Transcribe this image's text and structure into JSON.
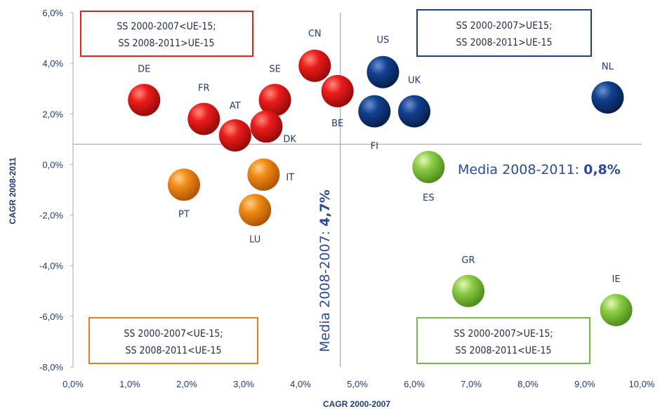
{
  "chart_data": {
    "type": "scatter",
    "title": "",
    "xlabel": "CAGR 2000-2007",
    "ylabel": "CAGR 2008-2011",
    "xlim": [
      0,
      10
    ],
    "ylim": [
      -8,
      6
    ],
    "xticks": [
      "0,0%",
      "1,0%",
      "2,0%",
      "3,0%",
      "4,0%",
      "5,0%",
      "6,0%",
      "7,0%",
      "8,0%",
      "9,0%",
      "10,0%"
    ],
    "yticks": [
      "6,0%",
      "4,0%",
      "2,0%",
      "0,0%",
      "-2,0%",
      "-4,0%",
      "-6,0%",
      "-8,0%"
    ],
    "grid": false,
    "reference_lines": {
      "x": 4.7,
      "y": 0.8,
      "x_label": "Media 2008-2007: ",
      "x_value": "4,7%",
      "y_label": "Media 2008-2011: ",
      "y_value": "0,8%"
    },
    "colors": {
      "red": "#e0141b",
      "blue": "#0d3a8a",
      "orange": "#ee7d10",
      "green": "#79c23a",
      "axis_text": "#1f3c78"
    },
    "quadrant_labels": [
      {
        "id": "top-left",
        "line1": "SS 2000-2007<UE-15;",
        "line2": "SS 2008-2011>UE-15",
        "color": "#d9261c"
      },
      {
        "id": "top-right",
        "line1": "SS 2000-2007>UE15;",
        "line2": "SS 2008-2011>UE-15",
        "color": "#1b3f8b"
      },
      {
        "id": "bottom-left",
        "line1": "SS 2000-2007<UE-15;",
        "line2": "SS 2008-2011<UE-15",
        "color": "#ea7b1c"
      },
      {
        "id": "bottom-right",
        "line1": "SS 2000-2007>UE-15;",
        "line2": "SS 2008-2011<UE-15",
        "color": "#7ab648"
      }
    ],
    "points": [
      {
        "label": "DE",
        "x": 1.25,
        "y": 2.55,
        "color": "red"
      },
      {
        "label": "FR",
        "x": 2.3,
        "y": 1.8,
        "color": "red"
      },
      {
        "label": "AT",
        "x": 2.85,
        "y": 1.15,
        "color": "red"
      },
      {
        "label": "SE",
        "x": 3.55,
        "y": 2.55,
        "color": "red"
      },
      {
        "label": "DK",
        "x": 3.4,
        "y": 1.5,
        "color": "red"
      },
      {
        "label": "CN",
        "x": 4.25,
        "y": 3.9,
        "color": "red"
      },
      {
        "label": "BE",
        "x": 4.65,
        "y": 2.9,
        "color": "red"
      },
      {
        "label": "US",
        "x": 5.45,
        "y": 3.65,
        "color": "blue"
      },
      {
        "label": "FI",
        "x": 5.3,
        "y": 2.1,
        "color": "blue"
      },
      {
        "label": "UK",
        "x": 6.0,
        "y": 2.1,
        "color": "blue"
      },
      {
        "label": "NL",
        "x": 9.4,
        "y": 2.65,
        "color": "blue"
      },
      {
        "label": "PT",
        "x": 1.95,
        "y": -0.8,
        "color": "orange"
      },
      {
        "label": "IT",
        "x": 3.35,
        "y": -0.4,
        "color": "orange"
      },
      {
        "label": "LU",
        "x": 3.2,
        "y": -1.8,
        "color": "orange"
      },
      {
        "label": "ES",
        "x": 6.25,
        "y": -0.1,
        "color": "green"
      },
      {
        "label": "GR",
        "x": 6.95,
        "y": -5.0,
        "color": "green"
      },
      {
        "label": "IE",
        "x": 9.55,
        "y": -5.75,
        "color": "green"
      }
    ]
  }
}
